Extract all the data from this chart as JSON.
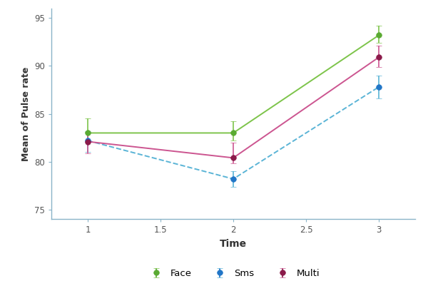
{
  "time": [
    1,
    2,
    3
  ],
  "face": {
    "mean": [
      83.0,
      83.0,
      93.2
    ],
    "err_upper": [
      1.5,
      1.2,
      1.0
    ],
    "err_lower": [
      0.8,
      0.8,
      0.8
    ],
    "color": "#5aaa32",
    "line_color": "#7dc44a",
    "label": "Face"
  },
  "sms": {
    "mean": [
      82.2,
      78.2,
      87.8
    ],
    "err_upper": [
      1.0,
      0.8,
      1.2
    ],
    "err_lower": [
      1.2,
      0.8,
      1.2
    ],
    "color": "#2176c7",
    "line_color": "#5ab4d6",
    "label": "Sms"
  },
  "multi": {
    "mean": [
      82.1,
      80.4,
      90.9
    ],
    "err_upper": [
      1.0,
      1.6,
      1.2
    ],
    "err_lower": [
      1.2,
      0.6,
      1.0
    ],
    "color": "#8b1a4a",
    "line_color": "#cc5590",
    "label": "Multi"
  },
  "xlabel": "Time",
  "ylabel": "Mean of Pulse rate",
  "xlim": [
    0.75,
    3.25
  ],
  "ylim": [
    74,
    96
  ],
  "yticks": [
    75,
    80,
    85,
    90,
    95
  ],
  "xticks": [
    1,
    1.5,
    2,
    2.5,
    3
  ],
  "bg_color": "#ffffff",
  "spine_color": "#8ab4c8",
  "tick_color": "#555555",
  "grid": false
}
